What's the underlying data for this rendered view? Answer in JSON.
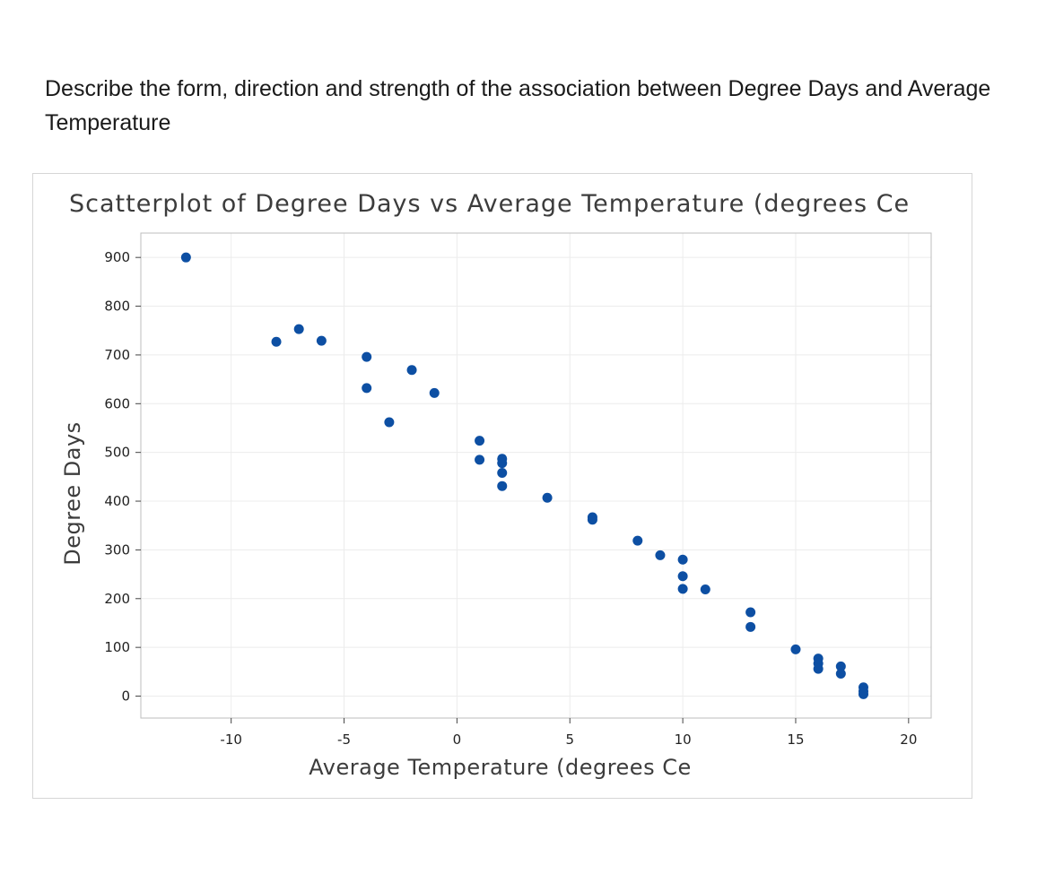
{
  "question": {
    "text": "Describe the form, direction and strength of the association between Degree Days and Average Temperature"
  },
  "chart_data": {
    "type": "scatter",
    "title": "Scatterplot of Degree Days vs Average Temperature (degrees Ce",
    "xlabel": "Average Temperature (degrees Ce",
    "ylabel": "Degree Days",
    "xlim": [
      -14,
      21
    ],
    "ylim": [
      -45,
      950
    ],
    "xticks": [
      -10,
      -5,
      0,
      5,
      10,
      15,
      20
    ],
    "yticks": [
      0,
      100,
      200,
      300,
      400,
      500,
      600,
      700,
      800,
      900
    ],
    "grid": true,
    "marker_color": "#0d4fa3",
    "series": [
      {
        "name": "Degree Days",
        "points": [
          [
            -12,
            900
          ],
          [
            -8,
            727
          ],
          [
            -7,
            753
          ],
          [
            -6,
            729
          ],
          [
            -4,
            696
          ],
          [
            -4,
            632
          ],
          [
            -3,
            562
          ],
          [
            -2,
            669
          ],
          [
            -1,
            622
          ],
          [
            1,
            524
          ],
          [
            1,
            485
          ],
          [
            2,
            487
          ],
          [
            2,
            478
          ],
          [
            2,
            458
          ],
          [
            2,
            431
          ],
          [
            4,
            407
          ],
          [
            6,
            367
          ],
          [
            6,
            362
          ],
          [
            8,
            319
          ],
          [
            9,
            289
          ],
          [
            10,
            280
          ],
          [
            10,
            246
          ],
          [
            10,
            220
          ],
          [
            11,
            219
          ],
          [
            13,
            172
          ],
          [
            13,
            142
          ],
          [
            15,
            96
          ],
          [
            16,
            77
          ],
          [
            16,
            67
          ],
          [
            16,
            56
          ],
          [
            17,
            61
          ],
          [
            17,
            46
          ],
          [
            18,
            18
          ],
          [
            18,
            10
          ],
          [
            18,
            4
          ]
        ]
      }
    ]
  }
}
